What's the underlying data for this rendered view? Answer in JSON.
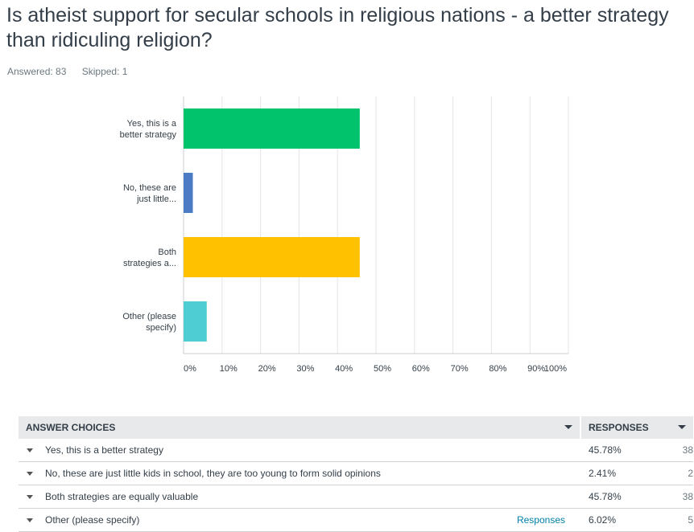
{
  "question": {
    "title": "Is atheist support for secular schools in religious nations - a better strategy than ridiculing religion?",
    "answered": "Answered: 83",
    "skipped": "Skipped: 1"
  },
  "chart_data": {
    "type": "bar",
    "orientation": "horizontal",
    "categories": [
      [
        "Yes, this is a",
        "better strategy"
      ],
      [
        "No, these are",
        "just little..."
      ],
      [
        "Both",
        "strategies a..."
      ],
      [
        "Other (please",
        "specify)"
      ]
    ],
    "values": [
      45.78,
      2.41,
      45.78,
      6.02
    ],
    "colors": [
      "#00c36b",
      "#4a7bc4",
      "#ffc100",
      "#4ecdd2"
    ],
    "xlim": [
      0,
      100
    ],
    "ticks": [
      "0%",
      "10%",
      "20%",
      "30%",
      "40%",
      "50%",
      "60%",
      "70%",
      "80%",
      "90%",
      "100%"
    ],
    "grid": true
  },
  "table": {
    "header_choices": "ANSWER CHOICES",
    "header_responses": "RESPONSES",
    "rows": [
      {
        "label": "Yes, this is a better strategy",
        "pct": "45.78%",
        "count": "38",
        "link": ""
      },
      {
        "label": "No, these are just little kids in school, they are too young to form solid opinions",
        "pct": "2.41%",
        "count": "2",
        "link": ""
      },
      {
        "label": "Both strategies are equally valuable",
        "pct": "45.78%",
        "count": "38",
        "link": ""
      },
      {
        "label": "Other (please specify)",
        "pct": "6.02%",
        "count": "5",
        "link": "Responses"
      }
    ]
  }
}
